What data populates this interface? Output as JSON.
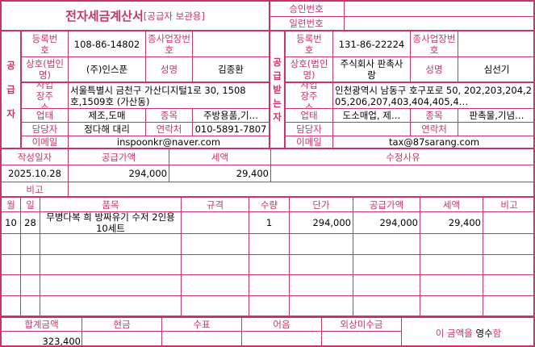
{
  "title": {
    "main": "전자세금계산서",
    "sub": "[공급자 보관용]"
  },
  "approval": {
    "approval_no_label": "승인번호",
    "approval_no": "",
    "serial_no_label": "일련번호",
    "serial_no": ""
  },
  "labels": {
    "reg_no": "등록번호",
    "sub_biz_no": "종사업장번호",
    "company": "상호(법인명)",
    "ceo": "성명",
    "address": "사업장주소",
    "biz_type": "업태",
    "biz_item": "종목",
    "manager": "담당자",
    "contact": "연락처",
    "email": "이메일"
  },
  "supplier": {
    "side_label": "공급자",
    "reg_no": "108-86-14802",
    "sub_biz_no": "",
    "company": "(주)인스푼",
    "ceo": "김종환",
    "address": "서울특별시 금천구 가산디지털1로 30, 1508호,1509호 (가산동)",
    "biz_type": "제조,도매",
    "biz_item": "주방용품,기…",
    "manager": "정다해 대리",
    "contact": "010-5891-7807",
    "email": "inspoonkr@naver.com"
  },
  "buyer": {
    "side_label": "공급받는자",
    "reg_no": "131-86-22224",
    "sub_biz_no": "",
    "company": "주식회사 판촉사랑",
    "ceo": "심선기",
    "address": "인천광역시 남동구 호구포로 50, 202,203,204,205,206,207,403,404,405,4…",
    "biz_type": "도소매업, 제…",
    "biz_item": "판촉물,기념…",
    "manager": "",
    "contact": "",
    "email": "tax@87sarang.com"
  },
  "summary": {
    "date_label": "작성일자",
    "supply_label": "공급가액",
    "tax_label": "세액",
    "reason_label": "수정사유",
    "date": "2025.10.28",
    "supply": "294,000",
    "tax": "29,400",
    "reason": "",
    "note_label": "비고",
    "note": ""
  },
  "items": {
    "headers": [
      "월",
      "일",
      "품목",
      "규격",
      "수량",
      "단가",
      "공급가액",
      "세액",
      "비고"
    ],
    "rows": [
      {
        "month": "10",
        "day": "28",
        "name": "무병다복 희 방짜유기 수저 2인용 10세트",
        "spec": "",
        "qty": "1",
        "unit_price": "294,000",
        "supply": "294,000",
        "tax": "29,400",
        "note": ""
      }
    ]
  },
  "totals": {
    "total_label": "합계금액",
    "cash_label": "현금",
    "check_label": "수표",
    "bill_label": "어음",
    "credit_label": "외상미수금",
    "total": "323,400",
    "cash": "",
    "check": "",
    "bill": "",
    "credit": "",
    "receipt_text": "이 금액을",
    "receipt_mark": "영수",
    "receipt_end": "함"
  },
  "colors": {
    "accent": "#c8336b"
  }
}
